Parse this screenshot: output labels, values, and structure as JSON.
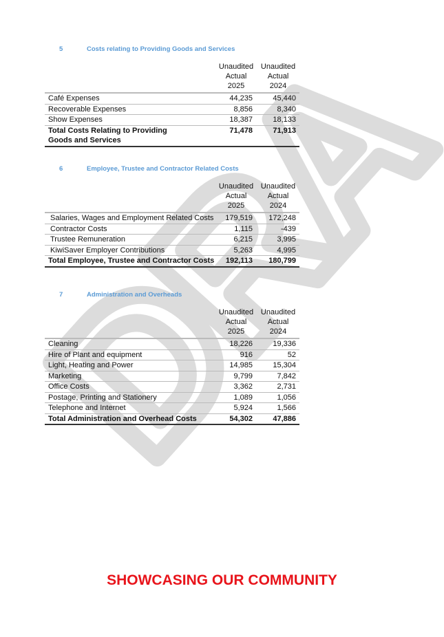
{
  "watermark": "DRAFT",
  "columns": [
    "Unaudited\nActual\n2025",
    "Unaudited\nActual\n2024"
  ],
  "column_lines": [
    [
      "Unaudited",
      "Actual",
      "2025"
    ],
    [
      "Unaudited",
      "Actual",
      "2024"
    ]
  ],
  "sections": [
    {
      "number": "5",
      "title": "Costs relating to Providing Goods and Services",
      "rows": [
        {
          "label": "Café Expenses",
          "v2025": "44,235",
          "v2024": "45,440"
        },
        {
          "label": "Recoverable Expenses",
          "v2025": "8,856",
          "v2024": "8,340"
        },
        {
          "label": "Show Expenses",
          "v2025": "18,387",
          "v2024": "18,133"
        }
      ],
      "total": {
        "label": "Total Costs Relating to Providing Goods and Services",
        "v2025": "71,478",
        "v2024": "71,913"
      }
    },
    {
      "number": "6",
      "title": "Employee, Trustee and Contractor Related Costs",
      "rows": [
        {
          "label": "Salaries, Wages and Employment Related Costs",
          "v2025": "179,519",
          "v2024": "172,248"
        },
        {
          "label": "Contractor Costs",
          "v2025": "1,115",
          "v2024": "-439"
        },
        {
          "label": "Trustee Remuneration",
          "v2025": "6,215",
          "v2024": "3,995"
        },
        {
          "label": "KiwiSaver Employer Contributions",
          "v2025": "5,263",
          "v2024": "4,995"
        }
      ],
      "total": {
        "label": "Total Employee, Trustee and Contractor Costs",
        "v2025": "192,113",
        "v2024": "180,799"
      }
    },
    {
      "number": "7",
      "title": "Administration and Overheads",
      "rows": [
        {
          "label": "Cleaning",
          "v2025": "18,226",
          "v2024": "19,336"
        },
        {
          "label": "Hire of Plant and equipment",
          "v2025": "916",
          "v2024": "52"
        },
        {
          "label": "Light, Heating and Power",
          "v2025": "14,985",
          "v2024": "15,304"
        },
        {
          "label": "Marketing",
          "v2025": "9,799",
          "v2024": "7,842"
        },
        {
          "label": "Office Costs",
          "v2025": "3,362",
          "v2024": "2,731"
        },
        {
          "label": "Postage, Printing and Stationery",
          "v2025": "1,089",
          "v2024": "1,056"
        },
        {
          "label": "Telephone and Internet",
          "v2025": "5,924",
          "v2024": "1,566"
        }
      ],
      "total": {
        "label": "Total Administration and Overhead Costs",
        "v2025": "54,302",
        "v2024": "47,886"
      }
    }
  ],
  "footer": "SHOWCASING OUR COMMUNITY",
  "colors": {
    "section_title": "#5b9bd5",
    "footer": "#e8141b",
    "watermark": "#dcdcdc"
  }
}
